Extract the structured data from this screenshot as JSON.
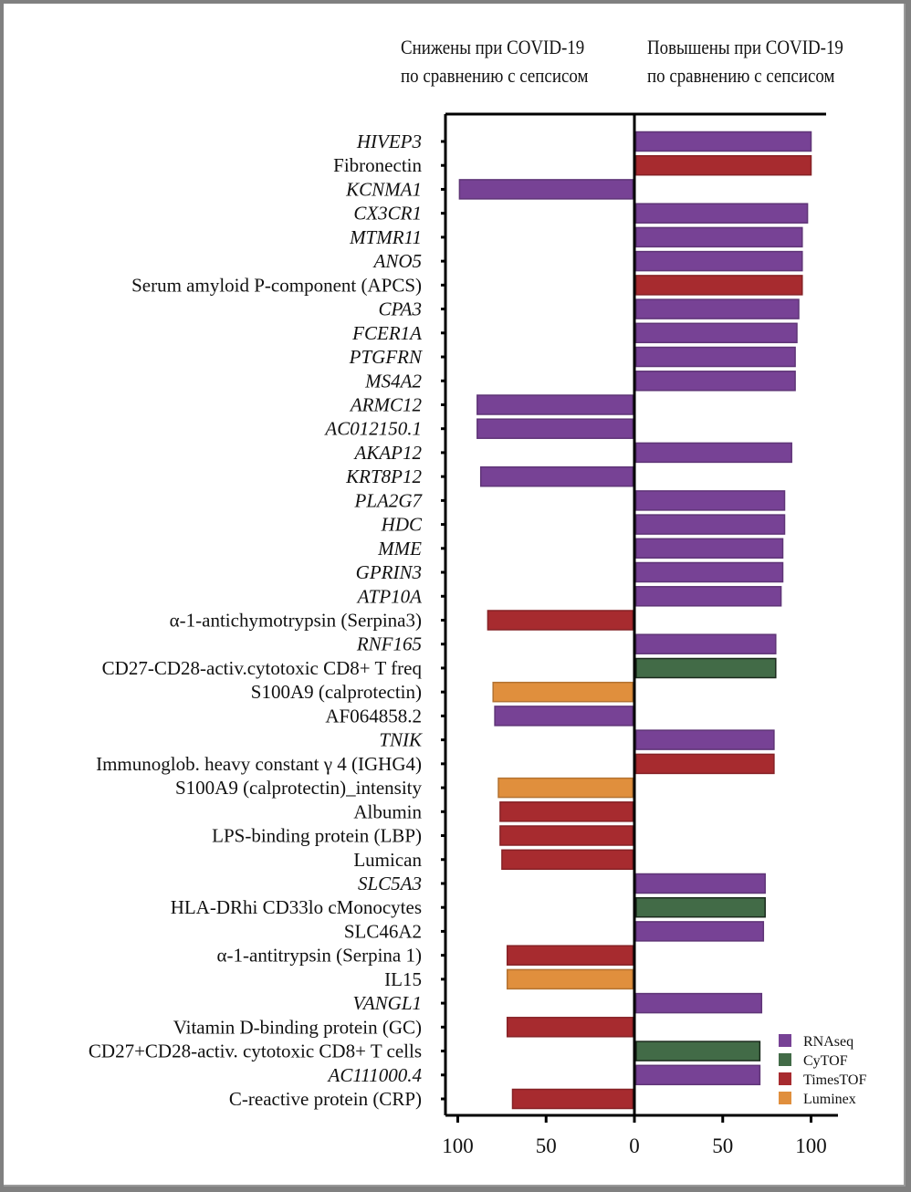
{
  "header": {
    "left_line1": "Снижены при COVID-19",
    "left_line2": "по сравнению с сепсисом",
    "right_line1": "Повышены при COVID-19",
    "right_line2": "по сравнению с сепсисом"
  },
  "colors": {
    "RNAseq": "#774295",
    "CyTOF": "#426b47",
    "TimesTOF": "#a72b2f",
    "Luminex": "#e08f3d"
  },
  "chart_data": {
    "type": "bar",
    "orientation": "horizontal-diverging",
    "title": "",
    "xlabel": "",
    "ylabel": "",
    "xlim": [
      -100,
      100
    ],
    "x_ticks": [
      -100,
      -50,
      0,
      50,
      100
    ],
    "x_tick_labels": [
      "100",
      "50",
      "0",
      "50",
      "100"
    ],
    "grid": false,
    "legend_position": "bottom-right",
    "legend": [
      "RNAseq",
      "CyTOF",
      "TimesTOF",
      "Luminex"
    ],
    "categories": [
      "HIVEP3",
      "Fibronectin",
      "KCNMA1",
      "CX3CR1",
      "MTMR11",
      "ANO5",
      "Serum amyloid P-component (APCS)",
      "CPA3",
      "FCER1A",
      "PTGFRN",
      "MS4A2",
      "ARMC12",
      "AC012150.1",
      "AKAP12",
      "KRT8P12",
      "PLA2G7",
      "HDC",
      "MME",
      "GPRIN3",
      "ATP10A",
      "α-1-antichymotrypsin (Serpina3)",
      "RNF165",
      "CD27-CD28-activ.cytotoxic CD8+ T freq",
      "S100A9 (calprotectin)",
      "AF064858.2",
      "TNIK",
      "Immunoglob. heavy constant γ 4 (IGHG4)",
      "S100A9 (calprotectin)_intensity",
      "Albumin",
      "LPS-binding protein (LBP)",
      "Lumican",
      "SLC5A3",
      "HLA-DRhi CD33lo cMonocytes",
      "SLC46A2",
      "α-1-antitrypsin (Serpina 1)",
      "IL15",
      "VANGL1",
      "Vitamin D-binding protein (GC)",
      "CD27+CD28-activ. cytotoxic CD8+ T cells",
      "AC111000.4",
      "C-reactive protein (CRP)"
    ],
    "italic": [
      true,
      false,
      true,
      true,
      true,
      true,
      false,
      true,
      true,
      true,
      true,
      true,
      true,
      true,
      true,
      true,
      true,
      true,
      true,
      true,
      false,
      true,
      false,
      false,
      false,
      true,
      false,
      false,
      false,
      false,
      false,
      true,
      false,
      false,
      false,
      false,
      true,
      false,
      false,
      true,
      false
    ],
    "values": [
      100,
      100,
      -99,
      98,
      95,
      95,
      95,
      93,
      92,
      91,
      91,
      -89,
      -89,
      89,
      -87,
      85,
      85,
      84,
      84,
      83,
      -83,
      80,
      80,
      -80,
      -79,
      79,
      79,
      -77,
      -76,
      -76,
      -75,
      74,
      74,
      73,
      -72,
      -72,
      72,
      -72,
      71,
      71,
      -69
    ],
    "sources": [
      "RNAseq",
      "TimesTOF",
      "RNAseq",
      "RNAseq",
      "RNAseq",
      "RNAseq",
      "TimesTOF",
      "RNAseq",
      "RNAseq",
      "RNAseq",
      "RNAseq",
      "RNAseq",
      "RNAseq",
      "RNAseq",
      "RNAseq",
      "RNAseq",
      "RNAseq",
      "RNAseq",
      "RNAseq",
      "RNAseq",
      "TimesTOF",
      "RNAseq",
      "CyTOF",
      "Luminex",
      "RNAseq",
      "RNAseq",
      "TimesTOF",
      "Luminex",
      "TimesTOF",
      "TimesTOF",
      "TimesTOF",
      "RNAseq",
      "CyTOF",
      "RNAseq",
      "TimesTOF",
      "Luminex",
      "RNAseq",
      "TimesTOF",
      "CyTOF",
      "RNAseq",
      "TimesTOF"
    ]
  }
}
